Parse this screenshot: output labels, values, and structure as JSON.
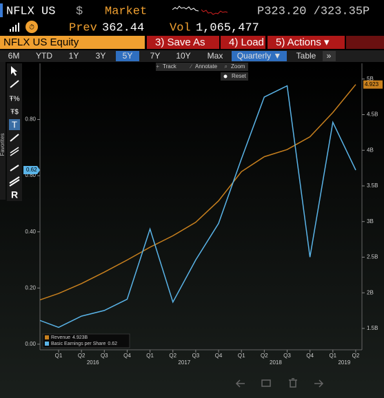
{
  "header": {
    "ticker": "NFLX US",
    "currency": "$",
    "market": "Market",
    "price": "P323.20 /323.35P",
    "prev_label": "Prev",
    "prev": "362.44",
    "vol_label": "Vol",
    "vol": "1,065,477"
  },
  "toolbar": {
    "security": "NFLX US Equity",
    "buttons": [
      "3) Save As",
      "4) Load",
      "5) Actions ▾"
    ]
  },
  "tabs": {
    "ranges": [
      "6M",
      "YTD",
      "1Y",
      "3Y",
      "5Y",
      "7Y",
      "10Y",
      "Max"
    ],
    "selected": "5Y",
    "periodicity": "Quarterly ▼",
    "table": "Table",
    "more": "»"
  },
  "chart_tools": {
    "items": [
      "Track",
      "Annotate",
      "Zoom"
    ],
    "reset": "Reset",
    "sidebar": "Favorites"
  },
  "chart_data": {
    "type": "line",
    "categories": [
      null,
      "Q1",
      "Q2",
      "Q3",
      "Q4",
      "Q1",
      "Q2",
      "Q3",
      "Q4",
      "Q1",
      "Q2",
      "Q3",
      "Q4",
      "Q1",
      "Q2"
    ],
    "x_groups": [
      {
        "label": "2016",
        "from": 1,
        "to": 4
      },
      {
        "label": "2017",
        "from": 5,
        "to": 8
      },
      {
        "label": "2018",
        "from": 9,
        "to": 12
      },
      {
        "label": "2019",
        "from": 13,
        "to": 14
      }
    ],
    "series": [
      {
        "name": "Revenue",
        "color": "#c8801e",
        "axis": "y2",
        "legend_value": "4.923B",
        "values": [
          1.88,
          1.99,
          2.13,
          2.29,
          2.46,
          2.64,
          2.8,
          2.99,
          3.29,
          3.7,
          3.91,
          4.01,
          4.19,
          4.53,
          4.923
        ]
      },
      {
        "name": "Basic Earnings per Share",
        "color": "#5ab4e8",
        "axis": "y",
        "values": [
          0.09,
          0.06,
          0.1,
          0.12,
          0.16,
          0.41,
          0.15,
          0.3,
          0.43,
          0.66,
          0.88,
          0.92,
          0.31,
          0.79,
          0.62
        ]
      }
    ],
    "ylim": [
      -0.02,
      1.0
    ],
    "yticks": [
      {
        "value": 0,
        "label": "0.00"
      },
      {
        "value": 0.2,
        "label": "0.20"
      },
      {
        "value": 0.4,
        "label": "0.40"
      },
      {
        "value": 0.6,
        "label": "0.60"
      },
      {
        "value": 0.8,
        "label": "0.80"
      }
    ],
    "y2lim": [
      1.2,
      5.22
    ],
    "y2ticks": [
      {
        "value": 1.5,
        "label": "1.5B"
      },
      {
        "value": 2,
        "label": "2B"
      },
      {
        "value": 2.5,
        "label": "2.5B"
      },
      {
        "value": 3,
        "label": "3B"
      },
      {
        "value": 3.5,
        "label": "3.5B"
      },
      {
        "value": 4,
        "label": "4B"
      },
      {
        "value": 4.5,
        "label": "4.5B"
      },
      {
        "value": 5,
        "label": "5B"
      }
    ]
  }
}
